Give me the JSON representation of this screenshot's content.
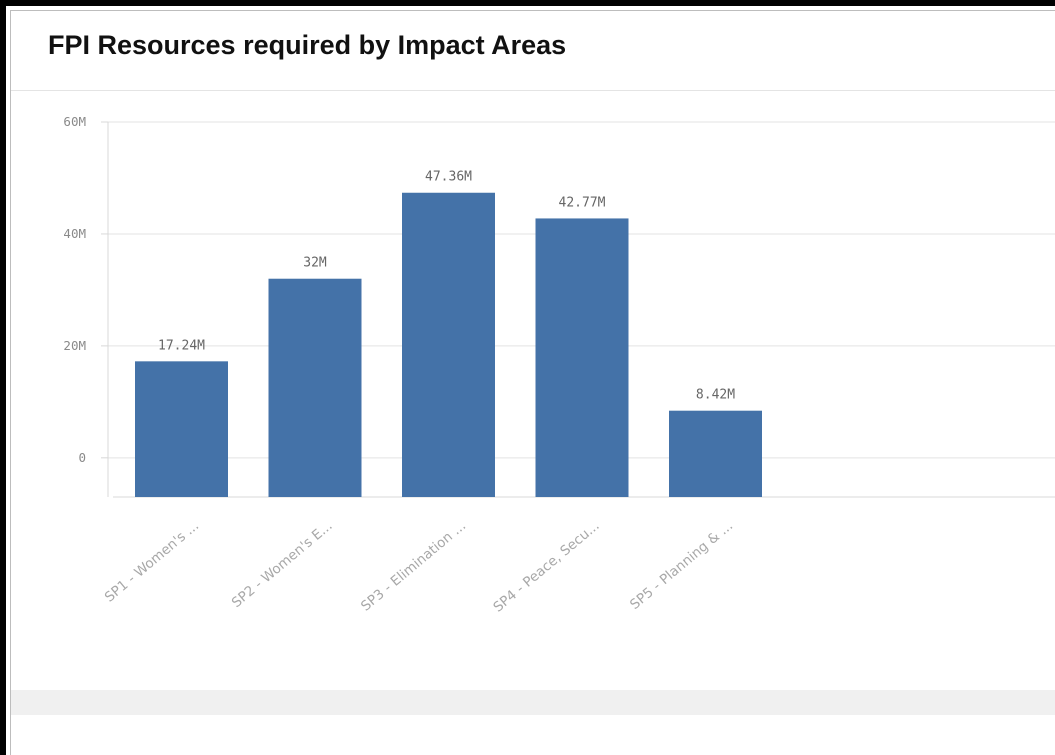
{
  "title": "FPI Resources required by Impact Areas",
  "colors": {
    "bar": "#4472a8",
    "grid": "#e3e3e3",
    "axis": "#d8d8d8",
    "tick_text": "#8a8a8a",
    "label_text": "#666666"
  },
  "chart_data": {
    "type": "bar",
    "title": "FPI Resources required by Impact Areas",
    "xlabel": "",
    "ylabel": "",
    "categories": [
      "SP1 - Women's ...",
      "SP2 - Women's E...",
      "SP3 - Elimination ...",
      "SP4 - Peace, Secu...",
      "SP5 - Planning & ..."
    ],
    "values": [
      17.24,
      32,
      47.36,
      42.77,
      8.42
    ],
    "value_labels": [
      "17.24M",
      "32M",
      "47.36M",
      "42.77M",
      "8.42M"
    ],
    "yticks": [
      0,
      20,
      40,
      60
    ],
    "ytick_labels": [
      "0",
      "20M",
      "40M",
      "60M"
    ],
    "ylim": [
      -7,
      60
    ],
    "unit": "M",
    "grid": true,
    "legend": "none"
  }
}
